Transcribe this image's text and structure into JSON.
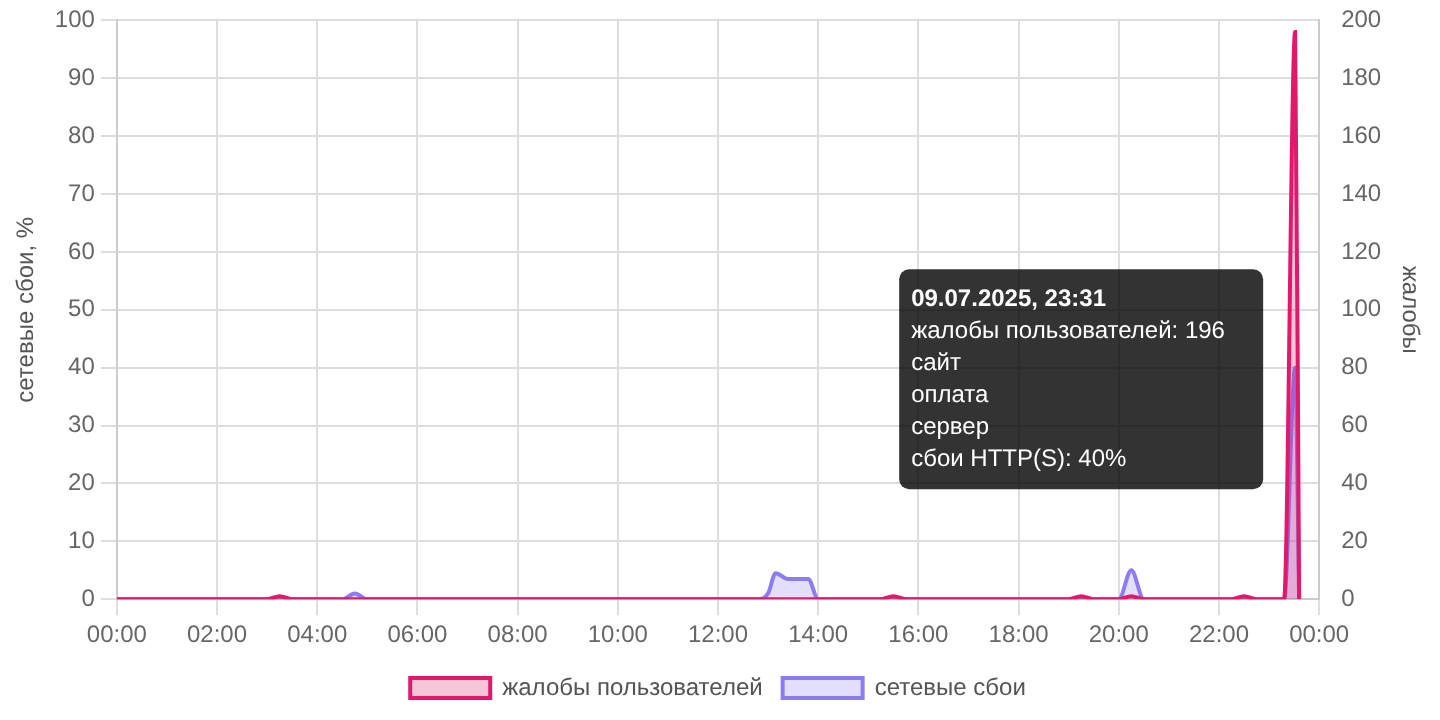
{
  "chart_data": {
    "type": "area",
    "ylabel": "сетевые сбои, %",
    "y2label": "жалобы",
    "xlim": [
      0,
      24
    ],
    "xticks": [
      {
        "value": 0,
        "label": "00:00"
      },
      {
        "value": 2,
        "label": "02:00"
      },
      {
        "value": 4,
        "label": "04:00"
      },
      {
        "value": 6,
        "label": "06:00"
      },
      {
        "value": 8,
        "label": "08:00"
      },
      {
        "value": 10,
        "label": "10:00"
      },
      {
        "value": 12,
        "label": "12:00"
      },
      {
        "value": 14,
        "label": "14:00"
      },
      {
        "value": 16,
        "label": "16:00"
      },
      {
        "value": 18,
        "label": "18:00"
      },
      {
        "value": 20,
        "label": "20:00"
      },
      {
        "value": 22,
        "label": "22:00"
      },
      {
        "value": 24,
        "label": "00:00"
      }
    ],
    "ylim": [
      0,
      100
    ],
    "yticks": [
      0,
      10,
      20,
      30,
      40,
      50,
      60,
      70,
      80,
      90,
      100
    ],
    "y2lim": [
      0,
      200
    ],
    "y2ticks": [
      0,
      20,
      40,
      60,
      80,
      100,
      120,
      140,
      160,
      180,
      200
    ],
    "grid": true,
    "legend": "bottom",
    "series": [
      {
        "name": "жалобы пользователей",
        "color": "#e0196a",
        "axis": "y2",
        "x": [
          0,
          3,
          3.25,
          3.5,
          15.25,
          15.5,
          15.75,
          19,
          19.25,
          19.5,
          20,
          20.25,
          20.5,
          22.25,
          22.5,
          22.75,
          23.3,
          23.52,
          23.6
        ],
        "values": [
          0,
          0,
          1,
          0,
          0,
          1,
          0,
          0,
          1,
          0,
          0,
          1,
          0,
          0,
          1,
          0,
          0,
          196,
          0
        ]
      },
      {
        "name": "сетевые сбои",
        "color": "#8c7cf2",
        "x": [
          0,
          4.5,
          4.75,
          5,
          12.8,
          13,
          13.15,
          13.4,
          13.8,
          14,
          20,
          20.25,
          20.5,
          23.3,
          23.52,
          23.6
        ],
        "values": [
          0,
          0,
          1,
          0,
          0,
          1,
          4.5,
          3.5,
          3.5,
          0,
          0,
          5,
          0,
          0,
          40,
          0
        ]
      }
    ],
    "annotations": [
      "09.07.2025, 23:31",
      "жалобы пользователей: 196",
      "сайт",
      "оплата",
      "сервер",
      "сбои HTTP(S): 40%"
    ]
  }
}
